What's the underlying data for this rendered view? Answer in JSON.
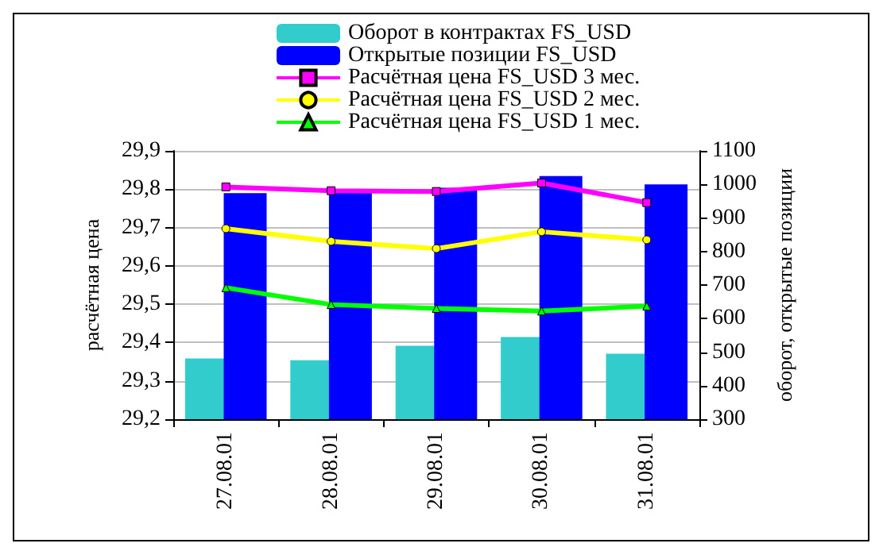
{
  "chart_data": {
    "type": "bar",
    "ylabel": "расчётная цена",
    "y2label": "оборот, открытые позиции",
    "categories": [
      "27.08.01",
      "28.08.01",
      "29.08.01",
      "30.08.01",
      "31.08.01"
    ],
    "series": [
      {
        "name": "Оборот в контрактах FS_USD",
        "axis": "y2",
        "color": "#33cccc",
        "values": [
          481,
          476,
          519,
          545,
          495
        ]
      },
      {
        "name": "Открытые позиции FS_USD",
        "axis": "y2",
        "color": "#0000ff",
        "values": [
          974,
          978,
          990,
          1025,
          1000
        ]
      },
      {
        "name": "Расчётная цена FS_USD 3 мес.",
        "type": "line",
        "color": "#ff00ff",
        "marker": "square",
        "values": [
          29.806,
          29.796,
          29.794,
          29.816,
          29.765
        ]
      },
      {
        "name": "Расчётная цена FS_USD 2 мес.",
        "type": "line",
        "color": "#ffff00",
        "marker": "circle",
        "values": [
          29.697,
          29.664,
          29.645,
          29.689,
          29.668
        ]
      },
      {
        "name": "Расчётная цена FS_USD 1 мес.",
        "type": "line",
        "color": "#00ff00",
        "marker": "triangle",
        "values": [
          29.543,
          29.499,
          29.489,
          29.482,
          29.495
        ]
      }
    ],
    "ylim": [
      29.2,
      29.9
    ],
    "yticks": [
      {
        "value": 29.2,
        "label": "29,2"
      },
      {
        "value": 29.3,
        "label": "29,3"
      },
      {
        "value": 29.4,
        "label": "29,4"
      },
      {
        "value": 29.5,
        "label": "29,5"
      },
      {
        "value": 29.6,
        "label": "29,6"
      },
      {
        "value": 29.7,
        "label": "29,7"
      },
      {
        "value": 29.8,
        "label": "29,8"
      },
      {
        "value": 29.9,
        "label": "29,9"
      }
    ],
    "y2lim": [
      300,
      1100
    ],
    "y2ticks": [
      300,
      400,
      500,
      600,
      700,
      800,
      900,
      1000,
      1100
    ],
    "grid": "y",
    "legend": "top"
  }
}
